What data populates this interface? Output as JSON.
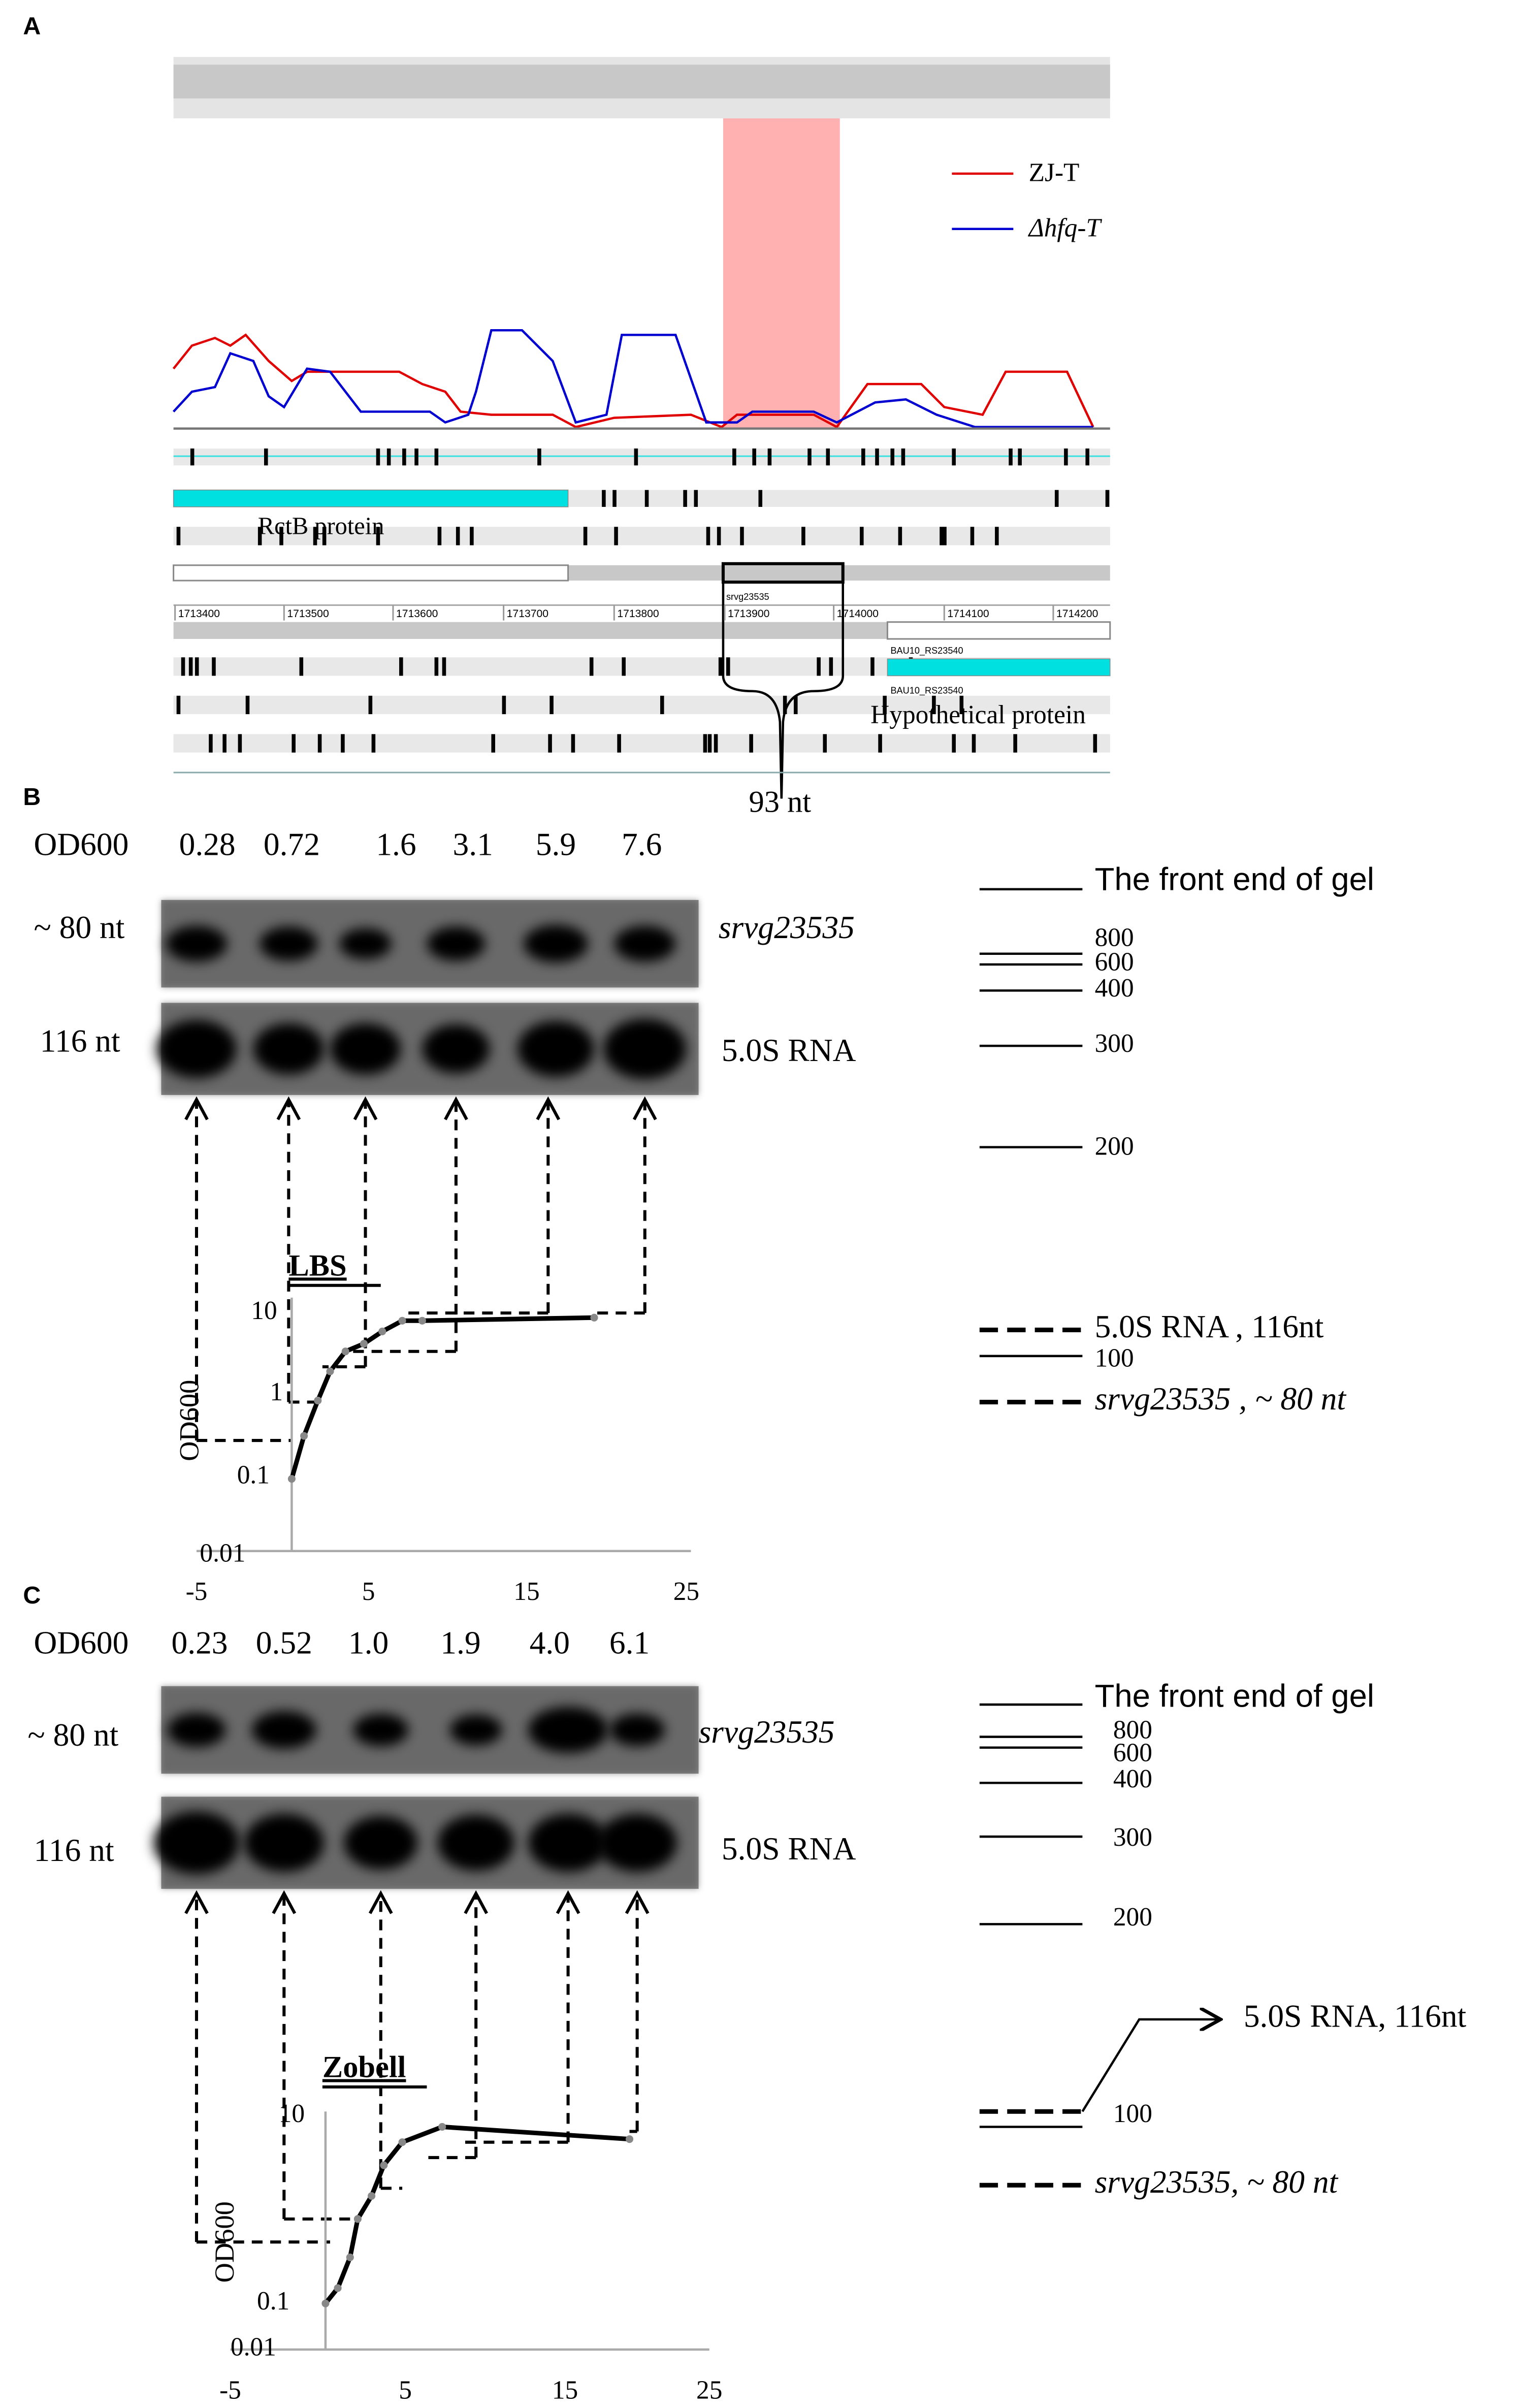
{
  "panel_a": {
    "label": "A",
    "legend": [
      "ZJ-T",
      "Δhfq-T"
    ],
    "genes": {
      "rctb": "RctB protein",
      "srvg": "srvg23535",
      "bau_1": "BAU10_RS23540",
      "bau_2": "BAU10_RS23540",
      "hypothetical": "Hypothetical protein"
    },
    "coordinates": [
      "1713400",
      "1713500",
      "1713600",
      "1713700",
      "1713800",
      "1713900",
      "1714000",
      "1714100",
      "1714200"
    ],
    "length": "93 nt"
  },
  "panel_b": {
    "label": "B",
    "od_label": "OD600",
    "od_values": [
      "0.28",
      "0.72",
      "1.6",
      "3.1",
      "5.9",
      "7.6"
    ],
    "bands": {
      "small_size": "~ 80 nt",
      "large_size": "116 nt",
      "small_name": "srvg23535",
      "large_name": "5.0S RNA"
    },
    "markers": {
      "front": "The front end of gel",
      "sizes": [
        "800",
        "600",
        "400",
        "300",
        "200",
        "100"
      ]
    },
    "legend": [
      "5.0S RNA , 116nt",
      "srvg23535 , ~ 80 nt"
    ],
    "growth": {
      "title": "LBS",
      "y_label": "OD600",
      "y_ticks": [
        "10",
        "1",
        "0.1",
        "0.01"
      ],
      "x_ticks": [
        "-5",
        "5",
        "15",
        "25"
      ]
    }
  },
  "panel_c": {
    "label": "C",
    "od_label": "OD600",
    "od_values": [
      "0.23",
      "0.52",
      "1.0",
      "1.9",
      "4.0",
      "6.1"
    ],
    "bands": {
      "small_size": "~ 80 nt",
      "large_size": "116 nt",
      "small_name": "srvg23535",
      "large_name": "5.0S RNA"
    },
    "markers": {
      "front": "The front end of gel",
      "sizes": [
        "800",
        "600",
        "400",
        "300",
        "200",
        "100"
      ]
    },
    "legend": [
      "5.0S RNA, 116nt",
      "srvg23535, ~ 80 nt"
    ],
    "growth": {
      "title": "Zobell",
      "y_label": "OD600",
      "y_ticks": [
        "10",
        "0.1",
        "0.01"
      ],
      "x_ticks": [
        "-5",
        "5",
        "15",
        "25"
      ]
    }
  }
}
